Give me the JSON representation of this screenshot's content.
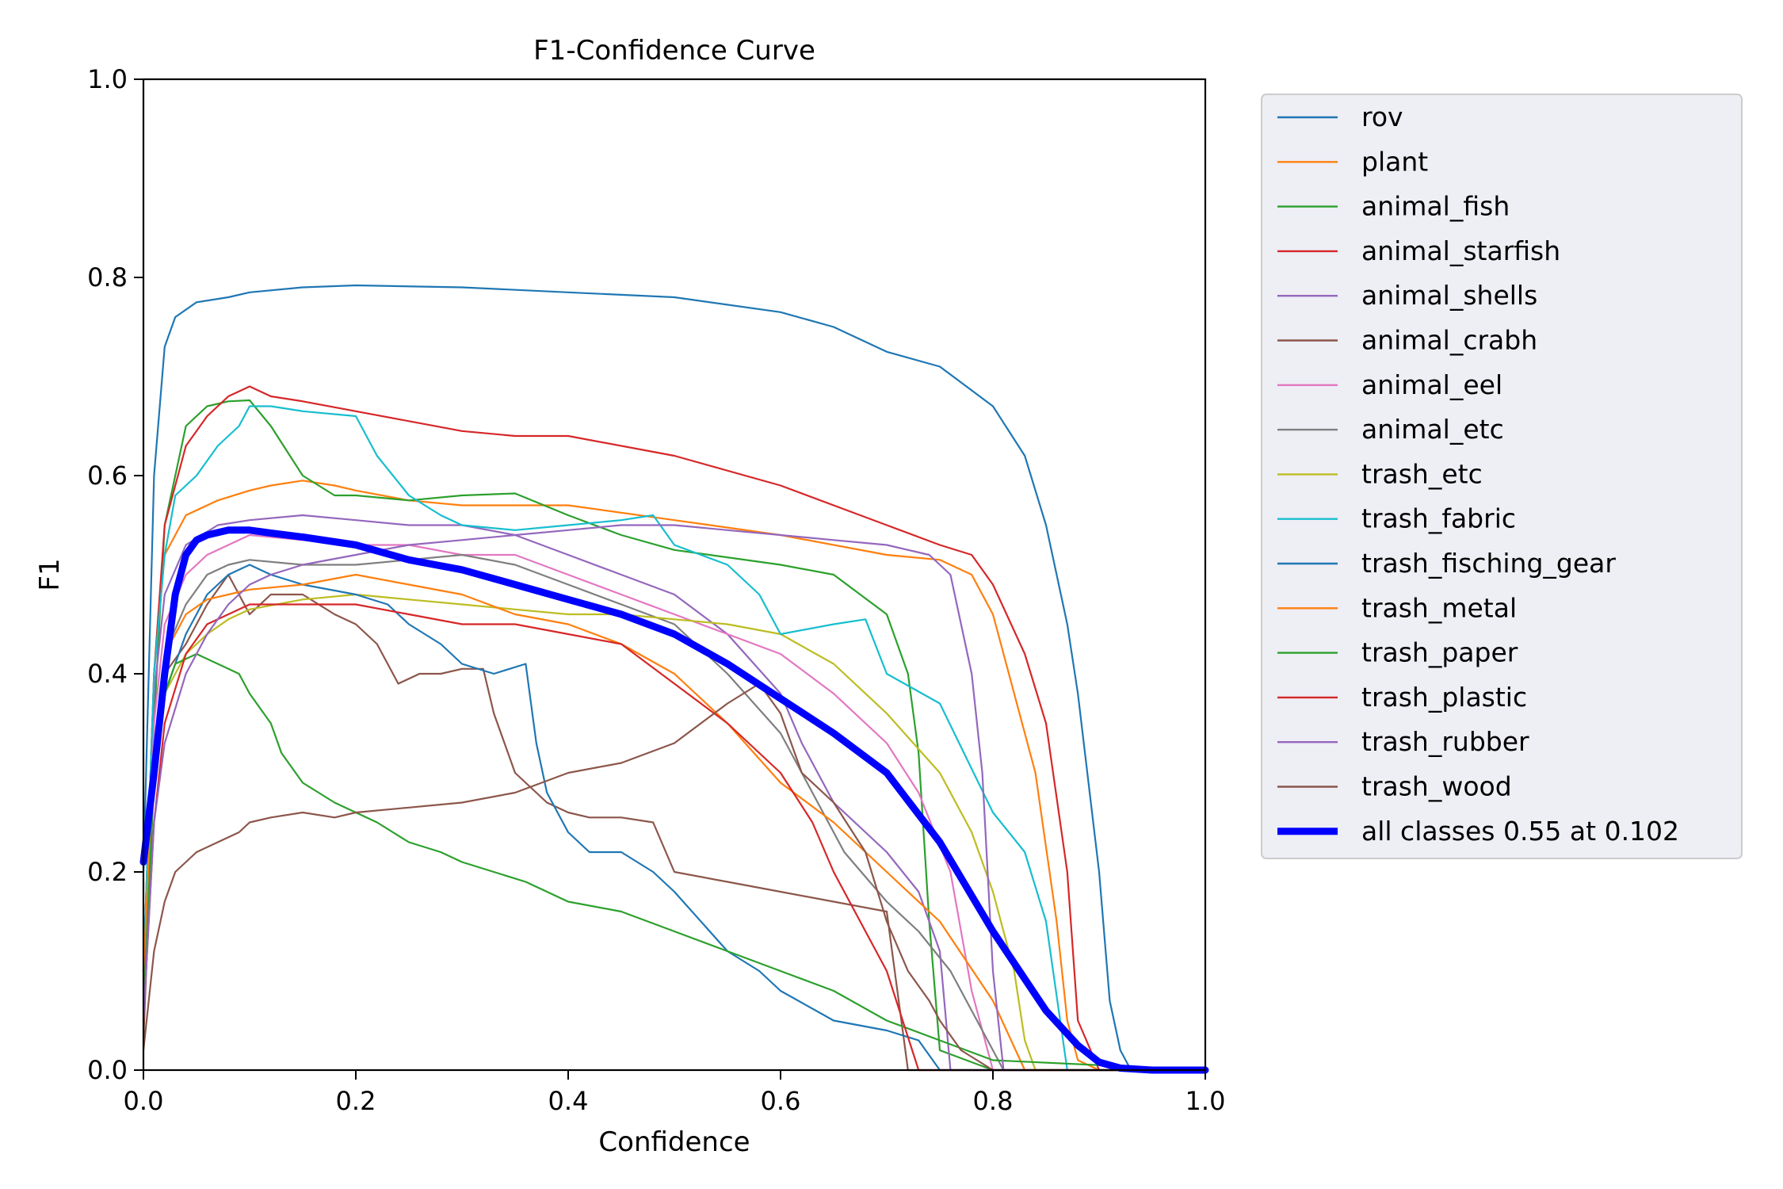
{
  "chart_data": {
    "type": "line",
    "title": "F1-Confidence Curve",
    "xlabel": "Confidence",
    "ylabel": "F1",
    "xlim": [
      0,
      1
    ],
    "ylim": [
      0,
      1
    ],
    "xticks": [
      "0.0",
      "0.2",
      "0.4",
      "0.6",
      "0.8",
      "1.0"
    ],
    "yticks": [
      "0.0",
      "0.2",
      "0.4",
      "0.6",
      "0.8",
      "1.0"
    ],
    "grid": false,
    "legend_position": "outside-right",
    "series": [
      {
        "name": "rov",
        "color": "#1f77b4",
        "x": [
          0,
          0.01,
          0.02,
          0.03,
          0.05,
          0.08,
          0.1,
          0.15,
          0.2,
          0.3,
          0.4,
          0.5,
          0.6,
          0.65,
          0.7,
          0.75,
          0.8,
          0.83,
          0.85,
          0.87,
          0.88,
          0.9,
          0.91,
          0.92,
          0.93,
          1.0
        ],
        "y": [
          0.2,
          0.6,
          0.73,
          0.76,
          0.775,
          0.78,
          0.785,
          0.79,
          0.792,
          0.79,
          0.785,
          0.78,
          0.765,
          0.75,
          0.725,
          0.71,
          0.67,
          0.62,
          0.55,
          0.45,
          0.38,
          0.2,
          0.07,
          0.02,
          0.0,
          0.0
        ]
      },
      {
        "name": "plant",
        "color": "#ff7f0e",
        "x": [
          0,
          0.01,
          0.02,
          0.04,
          0.07,
          0.1,
          0.12,
          0.15,
          0.18,
          0.2,
          0.25,
          0.3,
          0.4,
          0.5,
          0.6,
          0.7,
          0.75,
          0.78,
          0.8,
          0.82,
          0.84,
          0.86,
          0.87,
          0.88,
          0.9,
          1.0
        ],
        "y": [
          0.1,
          0.4,
          0.52,
          0.56,
          0.575,
          0.585,
          0.59,
          0.595,
          0.59,
          0.585,
          0.575,
          0.57,
          0.57,
          0.555,
          0.54,
          0.52,
          0.515,
          0.5,
          0.46,
          0.38,
          0.3,
          0.15,
          0.05,
          0.01,
          0.0,
          0.0
        ]
      },
      {
        "name": "animal_fish",
        "color": "#2ca02c",
        "x": [
          0,
          0.01,
          0.02,
          0.04,
          0.06,
          0.08,
          0.1,
          0.12,
          0.15,
          0.18,
          0.2,
          0.25,
          0.3,
          0.35,
          0.4,
          0.45,
          0.5,
          0.6,
          0.65,
          0.7,
          0.72,
          0.73,
          0.74,
          0.75,
          0.8,
          1.0
        ],
        "y": [
          0.05,
          0.35,
          0.55,
          0.65,
          0.67,
          0.675,
          0.676,
          0.65,
          0.6,
          0.58,
          0.58,
          0.575,
          0.58,
          0.582,
          0.56,
          0.54,
          0.525,
          0.51,
          0.5,
          0.46,
          0.4,
          0.32,
          0.15,
          0.02,
          0.0,
          0.0
        ]
      },
      {
        "name": "animal_starfish",
        "color": "#d62728",
        "x": [
          0,
          0.01,
          0.02,
          0.04,
          0.06,
          0.08,
          0.1,
          0.12,
          0.15,
          0.2,
          0.25,
          0.3,
          0.35,
          0.4,
          0.5,
          0.6,
          0.65,
          0.7,
          0.75,
          0.78,
          0.8,
          0.83,
          0.85,
          0.87,
          0.88,
          0.9,
          1.0
        ],
        "y": [
          0.1,
          0.4,
          0.55,
          0.63,
          0.66,
          0.68,
          0.69,
          0.68,
          0.675,
          0.665,
          0.655,
          0.645,
          0.64,
          0.64,
          0.62,
          0.59,
          0.57,
          0.55,
          0.53,
          0.52,
          0.49,
          0.42,
          0.35,
          0.2,
          0.05,
          0.0,
          0.0
        ]
      },
      {
        "name": "animal_shells",
        "color": "#9467bd",
        "x": [
          0,
          0.01,
          0.02,
          0.04,
          0.07,
          0.1,
          0.15,
          0.2,
          0.25,
          0.3,
          0.35,
          0.4,
          0.45,
          0.5,
          0.55,
          0.6,
          0.62,
          0.65,
          0.68,
          0.7,
          0.73,
          0.75,
          0.76,
          0.8,
          1.0
        ],
        "y": [
          0.1,
          0.38,
          0.48,
          0.53,
          0.55,
          0.555,
          0.56,
          0.555,
          0.55,
          0.55,
          0.54,
          0.52,
          0.5,
          0.48,
          0.44,
          0.38,
          0.33,
          0.27,
          0.24,
          0.22,
          0.18,
          0.12,
          0.0,
          0.0,
          0.0
        ]
      },
      {
        "name": "animal_crabh",
        "color": "#8c564b",
        "x": [
          0,
          0.01,
          0.02,
          0.04,
          0.06,
          0.08,
          0.1,
          0.12,
          0.15,
          0.18,
          0.2,
          0.22,
          0.24,
          0.26,
          0.28,
          0.3,
          0.32,
          0.33,
          0.35,
          0.38,
          0.4,
          0.42,
          0.45,
          0.48,
          0.5,
          0.55,
          0.6,
          0.65,
          0.7,
          0.72,
          0.8,
          1.0
        ],
        "y": [
          0.03,
          0.3,
          0.4,
          0.43,
          0.47,
          0.5,
          0.46,
          0.48,
          0.48,
          0.46,
          0.45,
          0.43,
          0.39,
          0.4,
          0.4,
          0.405,
          0.405,
          0.36,
          0.3,
          0.27,
          0.26,
          0.255,
          0.255,
          0.25,
          0.2,
          0.19,
          0.18,
          0.17,
          0.16,
          0.0,
          0.0,
          0.0
        ]
      },
      {
        "name": "animal_eel",
        "color": "#e377c2",
        "x": [
          0,
          0.01,
          0.02,
          0.04,
          0.06,
          0.08,
          0.1,
          0.15,
          0.2,
          0.25,
          0.3,
          0.35,
          0.4,
          0.45,
          0.5,
          0.55,
          0.6,
          0.65,
          0.7,
          0.73,
          0.76,
          0.78,
          0.8,
          1.0
        ],
        "y": [
          0.1,
          0.35,
          0.45,
          0.5,
          0.52,
          0.53,
          0.54,
          0.535,
          0.53,
          0.53,
          0.52,
          0.52,
          0.5,
          0.48,
          0.46,
          0.44,
          0.42,
          0.38,
          0.33,
          0.28,
          0.2,
          0.08,
          0.0,
          0.0
        ]
      },
      {
        "name": "animal_etc",
        "color": "#7f7f7f",
        "x": [
          0,
          0.01,
          0.02,
          0.04,
          0.06,
          0.08,
          0.1,
          0.15,
          0.2,
          0.25,
          0.3,
          0.35,
          0.4,
          0.45,
          0.5,
          0.55,
          0.6,
          0.63,
          0.66,
          0.7,
          0.73,
          0.76,
          0.78,
          0.8,
          0.81,
          1.0
        ],
        "y": [
          0.1,
          0.32,
          0.42,
          0.47,
          0.5,
          0.51,
          0.515,
          0.51,
          0.51,
          0.515,
          0.52,
          0.51,
          0.49,
          0.47,
          0.45,
          0.4,
          0.34,
          0.28,
          0.22,
          0.17,
          0.14,
          0.1,
          0.06,
          0.02,
          0.0,
          0.0
        ]
      },
      {
        "name": "trash_etc",
        "color": "#bcbd22",
        "x": [
          0,
          0.01,
          0.02,
          0.04,
          0.06,
          0.08,
          0.1,
          0.15,
          0.2,
          0.25,
          0.3,
          0.35,
          0.4,
          0.45,
          0.5,
          0.55,
          0.6,
          0.65,
          0.7,
          0.75,
          0.78,
          0.8,
          0.82,
          0.83,
          0.84,
          1.0
        ],
        "y": [
          0.1,
          0.3,
          0.38,
          0.42,
          0.44,
          0.455,
          0.465,
          0.475,
          0.48,
          0.475,
          0.47,
          0.465,
          0.46,
          0.46,
          0.455,
          0.45,
          0.44,
          0.41,
          0.36,
          0.3,
          0.24,
          0.18,
          0.1,
          0.03,
          0.0,
          0.0
        ]
      },
      {
        "name": "trash_fabric",
        "color": "#17becf",
        "x": [
          0,
          0.01,
          0.02,
          0.03,
          0.05,
          0.07,
          0.09,
          0.1,
          0.12,
          0.15,
          0.2,
          0.22,
          0.25,
          0.28,
          0.3,
          0.35,
          0.4,
          0.45,
          0.48,
          0.5,
          0.55,
          0.58,
          0.6,
          0.65,
          0.68,
          0.7,
          0.75,
          0.8,
          0.83,
          0.85,
          0.87,
          1.0
        ],
        "y": [
          0.1,
          0.4,
          0.52,
          0.58,
          0.6,
          0.63,
          0.65,
          0.67,
          0.67,
          0.665,
          0.66,
          0.62,
          0.58,
          0.56,
          0.55,
          0.545,
          0.55,
          0.555,
          0.56,
          0.53,
          0.51,
          0.48,
          0.44,
          0.45,
          0.455,
          0.4,
          0.37,
          0.26,
          0.22,
          0.15,
          0.0,
          0.0
        ]
      },
      {
        "name": "trash_fisching_gear",
        "color": "#1f77b4",
        "x": [
          0,
          0.01,
          0.02,
          0.04,
          0.06,
          0.08,
          0.1,
          0.12,
          0.15,
          0.2,
          0.23,
          0.25,
          0.28,
          0.3,
          0.33,
          0.36,
          0.37,
          0.38,
          0.4,
          0.42,
          0.45,
          0.48,
          0.5,
          0.55,
          0.58,
          0.6,
          0.65,
          0.7,
          0.73,
          0.75,
          1.0
        ],
        "y": [
          0.1,
          0.3,
          0.38,
          0.44,
          0.48,
          0.5,
          0.51,
          0.5,
          0.49,
          0.48,
          0.47,
          0.45,
          0.43,
          0.41,
          0.4,
          0.41,
          0.33,
          0.28,
          0.24,
          0.22,
          0.22,
          0.2,
          0.18,
          0.12,
          0.1,
          0.08,
          0.05,
          0.04,
          0.03,
          0.0,
          0.0
        ]
      },
      {
        "name": "trash_metal",
        "color": "#ff7f0e",
        "x": [
          0,
          0.01,
          0.02,
          0.04,
          0.06,
          0.08,
          0.1,
          0.15,
          0.2,
          0.25,
          0.3,
          0.35,
          0.4,
          0.45,
          0.5,
          0.55,
          0.6,
          0.65,
          0.7,
          0.75,
          0.8,
          0.83,
          1.0
        ],
        "y": [
          0.1,
          0.32,
          0.42,
          0.46,
          0.475,
          0.48,
          0.485,
          0.49,
          0.5,
          0.49,
          0.48,
          0.46,
          0.45,
          0.43,
          0.4,
          0.35,
          0.29,
          0.25,
          0.2,
          0.15,
          0.07,
          0.0,
          0.0
        ]
      },
      {
        "name": "trash_paper",
        "color": "#2ca02c",
        "x": [
          0,
          0.01,
          0.02,
          0.03,
          0.05,
          0.07,
          0.09,
          0.1,
          0.12,
          0.13,
          0.15,
          0.18,
          0.2,
          0.22,
          0.25,
          0.28,
          0.3,
          0.33,
          0.36,
          0.4,
          0.45,
          0.5,
          0.55,
          0.6,
          0.65,
          0.7,
          0.75,
          0.8,
          1.0
        ],
        "y": [
          0.05,
          0.3,
          0.38,
          0.41,
          0.42,
          0.41,
          0.4,
          0.38,
          0.35,
          0.32,
          0.29,
          0.27,
          0.26,
          0.25,
          0.23,
          0.22,
          0.21,
          0.2,
          0.19,
          0.17,
          0.16,
          0.14,
          0.12,
          0.1,
          0.08,
          0.05,
          0.03,
          0.01,
          0.0
        ]
      },
      {
        "name": "trash_plastic",
        "color": "#d62728",
        "x": [
          0,
          0.01,
          0.02,
          0.04,
          0.06,
          0.08,
          0.1,
          0.15,
          0.2,
          0.25,
          0.3,
          0.35,
          0.4,
          0.45,
          0.5,
          0.55,
          0.6,
          0.63,
          0.65,
          0.68,
          0.7,
          0.73,
          1.0
        ],
        "y": [
          0.05,
          0.25,
          0.35,
          0.42,
          0.45,
          0.46,
          0.47,
          0.47,
          0.47,
          0.46,
          0.45,
          0.45,
          0.44,
          0.43,
          0.39,
          0.35,
          0.3,
          0.25,
          0.2,
          0.14,
          0.1,
          0.0,
          0.0
        ]
      },
      {
        "name": "trash_rubber",
        "color": "#9467bd",
        "x": [
          0,
          0.01,
          0.02,
          0.04,
          0.06,
          0.08,
          0.1,
          0.12,
          0.15,
          0.2,
          0.25,
          0.3,
          0.35,
          0.4,
          0.45,
          0.5,
          0.55,
          0.6,
          0.65,
          0.7,
          0.74,
          0.76,
          0.78,
          0.79,
          0.8,
          0.81,
          1.0
        ],
        "y": [
          0.05,
          0.25,
          0.33,
          0.4,
          0.44,
          0.47,
          0.49,
          0.5,
          0.51,
          0.52,
          0.53,
          0.535,
          0.54,
          0.545,
          0.55,
          0.55,
          0.545,
          0.54,
          0.535,
          0.53,
          0.52,
          0.5,
          0.4,
          0.3,
          0.1,
          0.0,
          0.0
        ]
      },
      {
        "name": "trash_wood",
        "color": "#8c564b",
        "x": [
          0,
          0.01,
          0.02,
          0.03,
          0.05,
          0.07,
          0.09,
          0.1,
          0.12,
          0.15,
          0.18,
          0.2,
          0.25,
          0.3,
          0.35,
          0.4,
          0.45,
          0.5,
          0.55,
          0.58,
          0.6,
          0.62,
          0.65,
          0.68,
          0.7,
          0.72,
          0.74,
          0.75,
          0.77,
          0.8,
          1.0
        ],
        "y": [
          0.02,
          0.12,
          0.17,
          0.2,
          0.22,
          0.23,
          0.24,
          0.25,
          0.255,
          0.26,
          0.255,
          0.26,
          0.265,
          0.27,
          0.28,
          0.3,
          0.31,
          0.33,
          0.37,
          0.39,
          0.36,
          0.3,
          0.27,
          0.22,
          0.15,
          0.1,
          0.07,
          0.05,
          0.02,
          0.0,
          0.0
        ]
      },
      {
        "name": "all classes 0.55 at 0.102",
        "color": "#0000ff",
        "bold": true,
        "x": [
          0,
          0.01,
          0.02,
          0.03,
          0.04,
          0.05,
          0.06,
          0.08,
          0.1,
          0.12,
          0.15,
          0.2,
          0.25,
          0.3,
          0.35,
          0.4,
          0.45,
          0.5,
          0.55,
          0.6,
          0.65,
          0.7,
          0.75,
          0.8,
          0.85,
          0.88,
          0.9,
          0.92,
          0.95,
          1.0
        ],
        "y": [
          0.21,
          0.3,
          0.4,
          0.48,
          0.52,
          0.535,
          0.54,
          0.545,
          0.545,
          0.542,
          0.538,
          0.53,
          0.515,
          0.505,
          0.49,
          0.475,
          0.46,
          0.44,
          0.41,
          0.375,
          0.34,
          0.3,
          0.23,
          0.14,
          0.06,
          0.025,
          0.008,
          0.002,
          0.0,
          0.0
        ]
      }
    ]
  }
}
